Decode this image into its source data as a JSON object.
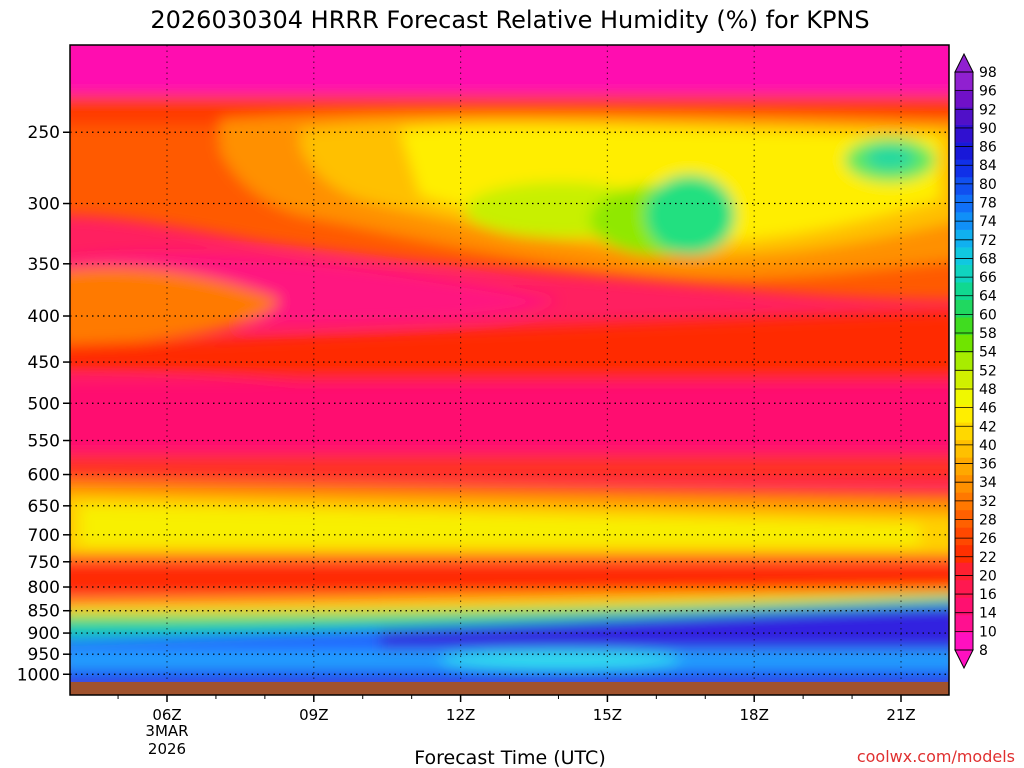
{
  "chart_data": {
    "type": "heatmap",
    "title": "2026030304 HRRR Forecast Relative Humidity (%) for KPNS",
    "xlabel": "Forecast Time (UTC)",
    "ylabel": "",
    "x_ticks": [
      "06Z",
      "09Z",
      "12Z",
      "15Z",
      "18Z",
      "21Z"
    ],
    "x_date_line1": "3MAR",
    "x_date_line2": "2026",
    "y_ticks": [
      250,
      300,
      350,
      400,
      450,
      500,
      550,
      600,
      650,
      700,
      750,
      800,
      850,
      900,
      950,
      1000
    ],
    "colorbar_levels": [
      8,
      10,
      14,
      16,
      20,
      22,
      26,
      28,
      32,
      34,
      36,
      40,
      42,
      46,
      48,
      52,
      54,
      58,
      60,
      64,
      66,
      68,
      72,
      74,
      78,
      80,
      84,
      86,
      90,
      92,
      96,
      98
    ],
    "ground_color": "#a0522d",
    "grid": true,
    "legend_position": "right"
  },
  "credit": "coolwx.com/models"
}
